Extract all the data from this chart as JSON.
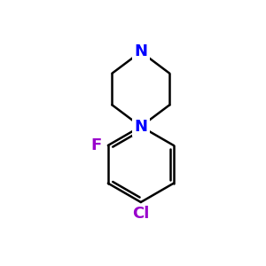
{
  "background_color": "#ffffff",
  "bond_color": "#000000",
  "N_color": "#0000ff",
  "F_color": "#9900cc",
  "Cl_color": "#9900cc",
  "line_width": 1.8,
  "font_size_atom": 13,
  "fig_size": [
    3.0,
    3.0
  ],
  "dpi": 100,
  "xlim": [
    0,
    10
  ],
  "ylim": [
    0,
    10
  ]
}
